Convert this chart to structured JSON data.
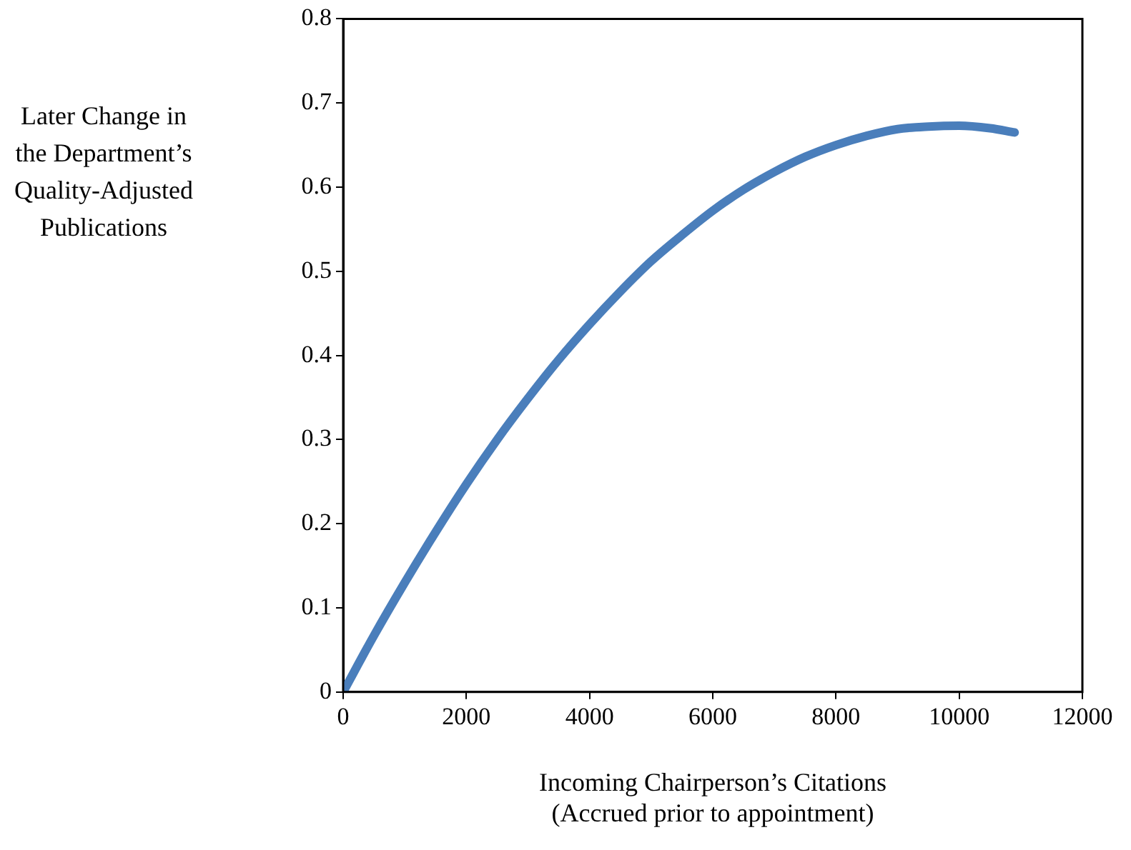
{
  "chart_data": {
    "type": "line",
    "xlabel": "Incoming Chairperson’s Citations\n(Accrued prior to appointment)",
    "ylabel": "Later Change in the Department’s Quality-Adjusted Publications",
    "x": [
      0,
      500,
      1000,
      1500,
      2000,
      2500,
      3000,
      3500,
      4000,
      4500,
      5000,
      5500,
      6000,
      6500,
      7000,
      7500,
      8000,
      8500,
      9000,
      9500,
      10000,
      10500,
      10900
    ],
    "series": [
      {
        "color": "#4a7ebb",
        "values": [
          0,
          0.067,
          0.13,
          0.19,
          0.247,
          0.3,
          0.349,
          0.395,
          0.437,
          0.476,
          0.512,
          0.543,
          0.572,
          0.597,
          0.618,
          0.636,
          0.65,
          0.661,
          0.669,
          0.672,
          0.673,
          0.67,
          0.665
        ]
      }
    ],
    "xlim": [
      0,
      12000
    ],
    "xticks": [
      0,
      2000,
      4000,
      6000,
      8000,
      10000,
      12000
    ],
    "ylim": [
      0,
      0.8
    ],
    "yticks": [
      0,
      0.1,
      0.2,
      0.3,
      0.4,
      0.5,
      0.6,
      0.7,
      0.8
    ],
    "grid": false,
    "legend": false,
    "marker": "none",
    "line_style": "solid"
  }
}
